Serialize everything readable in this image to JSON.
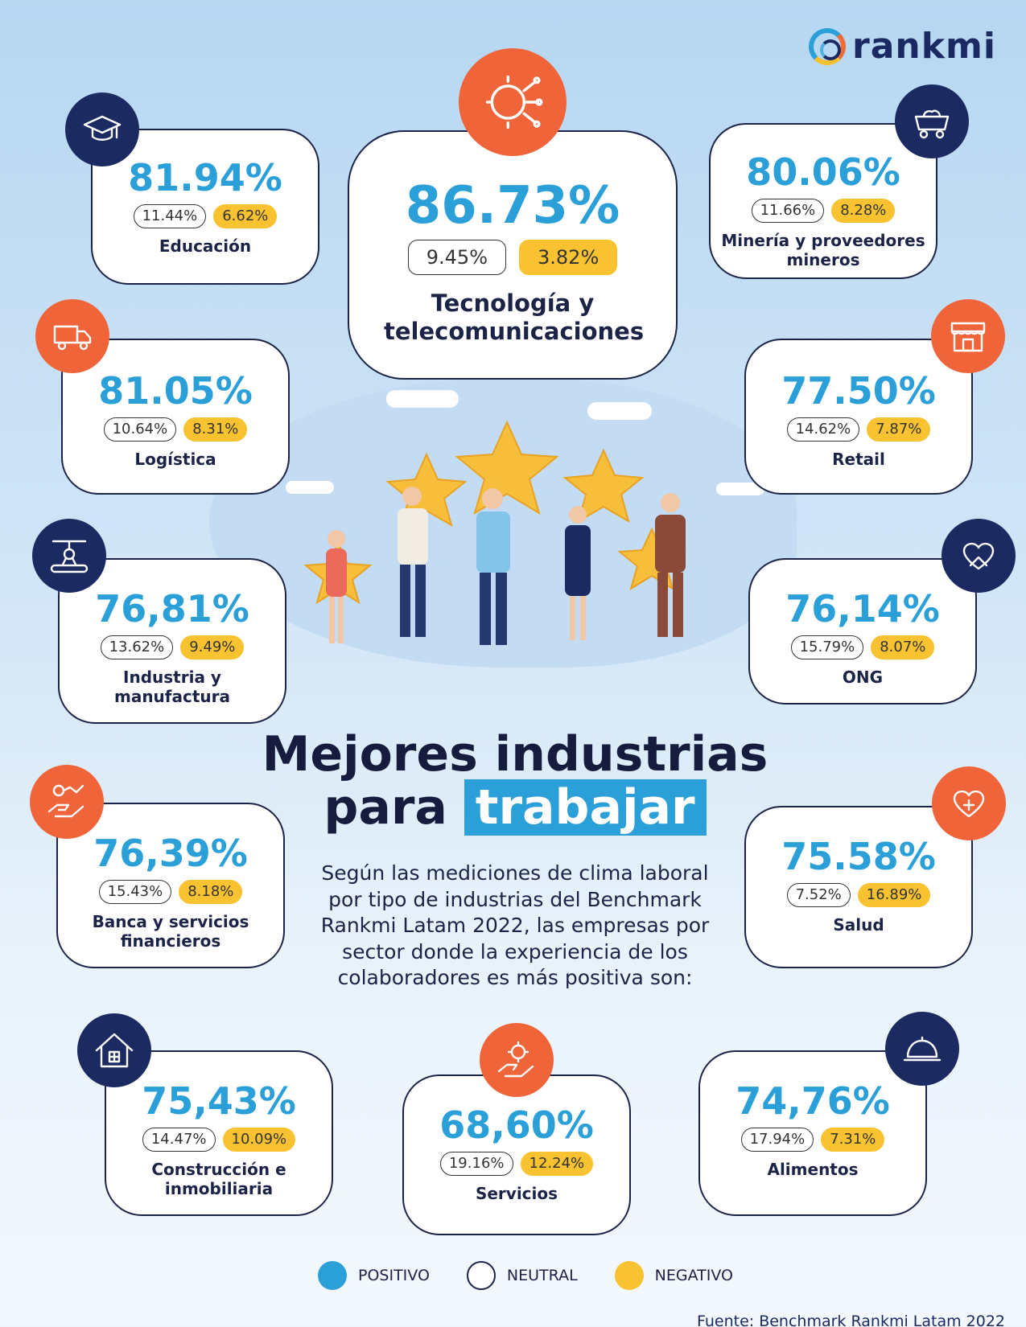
{
  "brand": {
    "name": "rankmi"
  },
  "title": {
    "line1": "Mejores industrias",
    "line2a": "para",
    "line2b": "trabajar"
  },
  "description": "Según las mediciones de clima laboral por tipo de industrias del Benchmark Rankmi Latam 2022, las empresas por sector donde la experiencia de los colaboradores es más positiva son:",
  "industries": [
    {
      "name": "Tecnología y telecomunicaciones",
      "positive": "86.73%",
      "neutral": "9.45%",
      "negative": "3.82%",
      "icon": "circuit-gear-icon"
    },
    {
      "name": "Educación",
      "positive": "81.94%",
      "neutral": "11.44%",
      "negative": "6.62%",
      "icon": "graduation-cap-icon"
    },
    {
      "name": "Minería y proveedores mineros",
      "positive": "80.06%",
      "neutral": "11.66%",
      "negative": "8.28%",
      "icon": "mine-cart-icon"
    },
    {
      "name": "Logística",
      "positive": "81.05%",
      "neutral": "10.64%",
      "negative": "8.31%",
      "icon": "truck-icon"
    },
    {
      "name": "Retail",
      "positive": "77.50%",
      "neutral": "14.62%",
      "negative": "7.87%",
      "icon": "store-icon"
    },
    {
      "name": "Industria y manufactura",
      "positive": "76,81%",
      "neutral": "13.62%",
      "negative": "9.49%",
      "icon": "robot-arm-icon"
    },
    {
      "name": "ONG",
      "positive": "76,14%",
      "neutral": "15.79%",
      "negative": "8.07%",
      "icon": "heart-hands-icon"
    },
    {
      "name": "Banca y servicios financieros",
      "positive": "76,39%",
      "neutral": "15.43%",
      "negative": "8.18%",
      "icon": "money-hand-icon"
    },
    {
      "name": "Salud",
      "positive": "75.58%",
      "neutral": "7.52%",
      "negative": "16.89%",
      "icon": "medical-heart-icon"
    },
    {
      "name": "Construcción e inmobiliaria",
      "positive": "75,43%",
      "neutral": "14.47%",
      "negative": "10.09%",
      "icon": "house-icon"
    },
    {
      "name": "Servicios",
      "positive": "68,60%",
      "neutral": "19.16%",
      "negative": "12.24%",
      "icon": "service-gear-hand-icon"
    },
    {
      "name": "Alimentos",
      "positive": "74,76%",
      "neutral": "17.94%",
      "negative": "7.31%",
      "icon": "food-cloche-icon"
    }
  ],
  "legend": {
    "positive": "POSITIVO",
    "neutral": "NEUTRAL",
    "negative": "NEGATIVO"
  },
  "colors": {
    "positive": "#2a9fd8",
    "neutral": "#ffffff",
    "negative": "#f8c230",
    "navy": "#1c2a62",
    "orange": "#f0643a"
  },
  "source": "Fuente: Benchmark Rankmi Latam 2022"
}
